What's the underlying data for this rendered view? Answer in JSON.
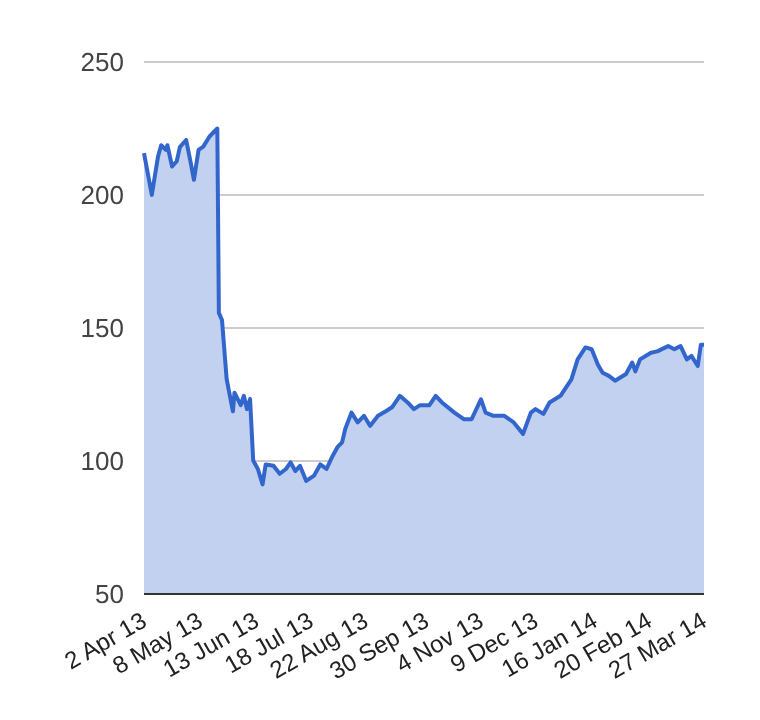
{
  "chart_data": {
    "type": "area",
    "x": [
      "2013-04-02",
      "2013-04-07",
      "2013-04-11",
      "2013-04-13",
      "2013-04-16",
      "2013-04-17",
      "2013-04-20",
      "2013-04-23",
      "2013-04-25",
      "2013-04-29",
      "2013-05-02",
      "2013-05-04",
      "2013-05-07",
      "2013-05-10",
      "2013-05-14",
      "2013-05-19",
      "2013-05-20",
      "2013-05-22",
      "2013-05-25",
      "2013-05-29",
      "2013-05-30",
      "2013-06-03",
      "2013-06-05",
      "2013-06-07",
      "2013-06-09",
      "2013-06-11",
      "2013-06-14",
      "2013-06-17",
      "2013-06-19",
      "2013-06-24",
      "2013-06-28",
      "2013-07-02",
      "2013-07-05",
      "2013-07-08",
      "2013-07-11",
      "2013-07-15",
      "2013-07-20",
      "2013-07-24",
      "2013-07-28",
      "2013-08-01",
      "2013-08-04",
      "2013-08-07",
      "2013-08-09",
      "2013-08-13",
      "2013-08-17",
      "2013-08-21",
      "2013-08-25",
      "2013-08-30",
      "2013-09-04",
      "2013-09-08",
      "2013-09-13",
      "2013-09-18",
      "2013-09-22",
      "2013-09-26",
      "2013-10-02",
      "2013-10-06",
      "2013-10-10",
      "2013-10-18",
      "2013-10-24",
      "2013-10-29",
      "2013-11-04",
      "2013-11-07",
      "2013-11-12",
      "2013-11-19",
      "2013-11-25",
      "2013-12-01",
      "2013-12-06",
      "2013-12-09",
      "2013-12-14",
      "2013-12-18",
      "2013-12-25",
      "2014-01-01",
      "2014-01-05",
      "2014-01-10",
      "2014-01-14",
      "2014-01-18",
      "2014-01-21",
      "2014-01-25",
      "2014-01-29",
      "2014-02-05",
      "2014-02-09",
      "2014-02-11",
      "2014-02-14",
      "2014-02-21",
      "2014-02-25",
      "2014-03-04",
      "2014-03-08",
      "2014-03-12",
      "2014-03-16",
      "2014-03-19",
      "2014-03-23",
      "2014-03-25",
      "2014-03-27"
    ],
    "series": [
      {
        "color": "#3366cc",
        "values": [
          215.7,
          200,
          214.5,
          218.7,
          217,
          218.7,
          210.7,
          212.7,
          218,
          220.7,
          212,
          205.7,
          217,
          218.2,
          222,
          225,
          155.7,
          153,
          130.7,
          118.7,
          125.7,
          121,
          124.5,
          119.5,
          123.3,
          100.2,
          97,
          91.2,
          98.7,
          98.2,
          95.2,
          97,
          99.5,
          96.2,
          98.2,
          92.5,
          94.5,
          98.7,
          97,
          102,
          105.2,
          107,
          112,
          118.2,
          114.5,
          117,
          113.2,
          117,
          118.7,
          120.2,
          124.5,
          122,
          119.5,
          121,
          121,
          124.5,
          122,
          118.2,
          115.7,
          115.7,
          123.2,
          118.2,
          117,
          117,
          114.5,
          110.2,
          118.2,
          119.5,
          117.7,
          122,
          124.5,
          130.7,
          138.2,
          142.7,
          142,
          136.2,
          133.2,
          132,
          130.2,
          132.7,
          137,
          133.7,
          138.2,
          140.7,
          141.2,
          143.2,
          142,
          143.2,
          138.2,
          139.5,
          135.7,
          143.7,
          143.7
        ]
      }
    ],
    "xlim": [
      "2013-04-02",
      "2014-03-27"
    ],
    "xticks": [
      {
        "value": "2013-04-02",
        "label": "2 Apr 13"
      },
      {
        "value": "2013-05-08",
        "label": "8 May 13"
      },
      {
        "value": "2013-06-13",
        "label": "13 Jun 13"
      },
      {
        "value": "2013-07-18",
        "label": "18 Jul 13"
      },
      {
        "value": "2013-08-22",
        "label": "22 Aug 13"
      },
      {
        "value": "2013-09-30",
        "label": "30 Sep 13"
      },
      {
        "value": "2013-11-04",
        "label": "4 Nov 13"
      },
      {
        "value": "2013-12-09",
        "label": "9 Dec 13"
      },
      {
        "value": "2014-01-16",
        "label": "16 Jan 14"
      },
      {
        "value": "2014-02-20",
        "label": "20 Feb 14"
      },
      {
        "value": "2014-03-27",
        "label": "27 Mar 14"
      }
    ],
    "ylim": [
      50,
      250
    ],
    "yticks": [
      50,
      100,
      150,
      200,
      250
    ],
    "grid": "y"
  }
}
